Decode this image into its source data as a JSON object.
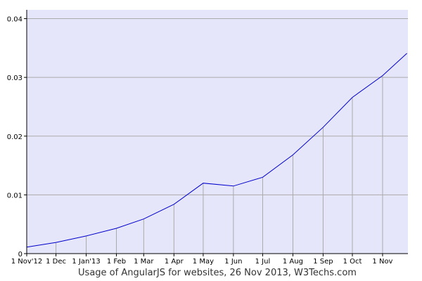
{
  "chart_data": {
    "type": "line",
    "title": "Usage of AngularJS for websites, 26 Nov 2013, W3Techs.com",
    "xlabel": "",
    "ylabel": "",
    "x_tick_labels": [
      "1 Nov'12",
      "1 Dec",
      "1 Jan'13",
      "1 Feb",
      "1 Mar",
      "1 Apr",
      "1 May",
      "1 Jun",
      "1 Jul",
      "1 Aug",
      "1 Sep",
      "1 Oct",
      "1 Nov"
    ],
    "x_range": [
      "2012-11-01",
      "2013-11-26"
    ],
    "y_tick_labels": [
      "0",
      "0.01",
      "0.02",
      "0.03",
      "0.04"
    ],
    "y_ticks": [
      0,
      0.01,
      0.02,
      0.03,
      0.04
    ],
    "ylim": [
      0,
      0.0415
    ],
    "grid": true,
    "legend": "none",
    "series": [
      {
        "points": [
          [
            "2012-11-01",
            0.0011
          ],
          [
            "2012-12-01",
            0.0019
          ],
          [
            "2013-01-01",
            0.003
          ],
          [
            "2013-02-01",
            0.0043
          ],
          [
            "2013-03-01",
            0.0059
          ],
          [
            "2013-04-01",
            0.0084
          ],
          [
            "2013-05-01",
            0.012
          ],
          [
            "2013-06-01",
            0.0115
          ],
          [
            "2013-07-01",
            0.013
          ],
          [
            "2013-08-01",
            0.0168
          ],
          [
            "2013-09-01",
            0.0215
          ],
          [
            "2013-10-01",
            0.0266
          ],
          [
            "2013-11-01",
            0.0303
          ],
          [
            "2013-11-26",
            0.0341
          ]
        ]
      }
    ],
    "colors": {
      "plot_background": "#e6e6fa",
      "line": "#0000cc",
      "grid": "#aaaaaa",
      "axis": "#000000"
    }
  }
}
